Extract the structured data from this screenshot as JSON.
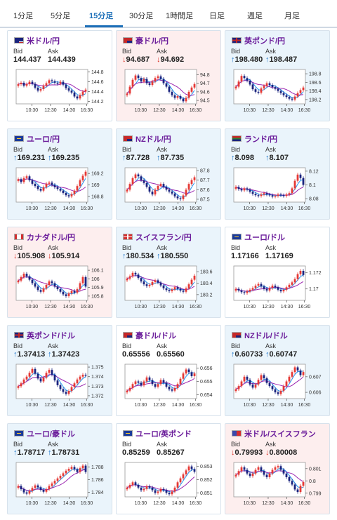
{
  "tabs": [
    {
      "label": "1分足",
      "active": false
    },
    {
      "label": "5分足",
      "active": false
    },
    {
      "label": "15分足",
      "active": true
    },
    {
      "label": "30分足",
      "active": false
    },
    {
      "label": "1時間足",
      "active": false
    },
    {
      "label": "日足",
      "active": false
    },
    {
      "label": "週足",
      "active": false
    },
    {
      "label": "月足",
      "active": false
    }
  ],
  "labels": {
    "bid": "Bid",
    "ask": "Ask"
  },
  "arrows": {
    "up": "↑",
    "down": "↓"
  },
  "colors": {
    "candle_up": "#e53935",
    "candle_down": "#1a237e",
    "ma_fast": "#9b27b0",
    "ma_slow": "#2196f3",
    "card_up_bg": "#eaf4fb",
    "card_down_bg": "#fdeeee",
    "pair_text": "#6a1b9a",
    "tab_active": "#1d6fb8"
  },
  "cards": [
    {
      "pair": "米ドル/円",
      "flag": "us-flag",
      "trend": "neutral",
      "bid": "144.437",
      "ask": "144.439",
      "chart_data": {
        "type": "candlestick",
        "x_ticks": [
          "10:30",
          "12:30",
          "14:30",
          "16:30"
        ],
        "y_ticks": [
          "144.8",
          "144.6",
          "144.4",
          "144.2"
        ],
        "ylim": [
          144.15,
          144.85
        ],
        "closes": [
          144.55,
          144.58,
          144.52,
          144.55,
          144.6,
          144.56,
          144.48,
          144.42,
          144.45,
          144.52,
          144.57,
          144.63,
          144.61,
          144.58,
          144.56,
          144.6,
          144.54,
          144.47,
          144.42,
          144.38,
          144.3,
          144.26,
          144.33,
          144.4,
          144.44
        ]
      }
    },
    {
      "pair": "豪ドル/円",
      "flag": "au-flag",
      "trend": "down",
      "bid": "94.687",
      "ask": "94.692",
      "chart_data": {
        "type": "candlestick",
        "x_ticks": [
          "10:30",
          "12:30",
          "14:30",
          "16:30"
        ],
        "y_ticks": [
          "94.8",
          "94.7",
          "94.6",
          "94.5"
        ],
        "ylim": [
          94.46,
          94.86
        ],
        "closes": [
          94.58,
          94.66,
          94.74,
          94.79,
          94.76,
          94.72,
          94.75,
          94.7,
          94.68,
          94.72,
          94.76,
          94.78,
          94.75,
          94.7,
          94.66,
          94.6,
          94.56,
          94.53,
          94.55,
          94.52,
          94.49,
          94.53,
          94.6,
          94.65,
          94.69
        ]
      }
    },
    {
      "pair": "英ポンド/円",
      "flag": "gb-flag",
      "trend": "up",
      "bid": "198.480",
      "ask": "198.487",
      "chart_data": {
        "type": "candlestick",
        "x_ticks": [
          "10:30",
          "12:30",
          "14:30",
          "16:30"
        ],
        "y_ticks": [
          "198.8",
          "198.6",
          "198.4",
          "198.2"
        ],
        "ylim": [
          198.1,
          198.9
        ],
        "closes": [
          198.5,
          198.62,
          198.75,
          198.7,
          198.64,
          198.55,
          198.44,
          198.38,
          198.36,
          198.46,
          198.52,
          198.58,
          198.54,
          198.49,
          198.45,
          198.4,
          198.35,
          198.3,
          198.26,
          198.22,
          198.2,
          198.27,
          198.35,
          198.42,
          198.48
        ]
      }
    },
    {
      "pair": "ユーロ/円",
      "flag": "eu-flag",
      "trend": "up",
      "bid": "169.231",
      "ask": "169.235",
      "chart_data": {
        "type": "candlestick",
        "x_ticks": [
          "10:30",
          "12:30",
          "14:30",
          "16:30"
        ],
        "y_ticks": [
          "169.2",
          "169",
          "168.8"
        ],
        "ylim": [
          168.7,
          169.3
        ],
        "closes": [
          169.1,
          169.05,
          169.12,
          169.15,
          169.08,
          169.02,
          168.98,
          168.93,
          168.9,
          168.96,
          169.02,
          169.04,
          169.0,
          168.96,
          168.93,
          168.9,
          168.86,
          168.82,
          168.8,
          168.84,
          168.9,
          168.98,
          169.08,
          169.16,
          169.23
        ]
      }
    },
    {
      "pair": "NZドル/円",
      "flag": "nz-flag",
      "trend": "up",
      "bid": "87.728",
      "ask": "87.735",
      "chart_data": {
        "type": "candlestick",
        "x_ticks": [
          "10:30",
          "12:30",
          "14:30",
          "16:30"
        ],
        "y_ticks": [
          "87.8",
          "87.7",
          "87.6",
          "87.5"
        ],
        "ylim": [
          87.47,
          87.83
        ],
        "closes": [
          87.6,
          87.66,
          87.72,
          87.76,
          87.74,
          87.7,
          87.67,
          87.63,
          87.58,
          87.55,
          87.6,
          87.64,
          87.66,
          87.63,
          87.6,
          87.58,
          87.56,
          87.53,
          87.51,
          87.5,
          87.54,
          87.6,
          87.66,
          87.7,
          87.73
        ]
      }
    },
    {
      "pair": "ランド/円",
      "flag": "za-flag",
      "trend": "up",
      "bid": "8.098",
      "ask": "8.107",
      "chart_data": {
        "type": "candlestick",
        "x_ticks": [
          "10:30",
          "12:30",
          "14:30",
          "16:30"
        ],
        "y_ticks": [
          "8.12",
          "8.1",
          "8.08"
        ],
        "ylim": [
          8.075,
          8.125
        ],
        "closes": [
          8.097,
          8.094,
          8.092,
          8.095,
          8.093,
          8.09,
          8.087,
          8.085,
          8.084,
          8.086,
          8.088,
          8.086,
          8.085,
          8.083,
          8.084,
          8.086,
          8.085,
          8.084,
          8.086,
          8.088,
          8.095,
          8.106,
          8.115,
          8.11,
          8.1
        ]
      }
    },
    {
      "pair": "カナダドル/円",
      "flag": "ca-flag",
      "trend": "down",
      "bid": "105.908",
      "ask": "105.914",
      "chart_data": {
        "type": "candlestick",
        "x_ticks": [
          "10:30",
          "12:30",
          "14:30",
          "16:30"
        ],
        "y_ticks": [
          "106.1",
          "106",
          "105.9",
          "105.8"
        ],
        "ylim": [
          105.75,
          106.15
        ],
        "closes": [
          105.98,
          106.02,
          106.06,
          106.03,
          105.99,
          105.95,
          105.91,
          105.87,
          105.85,
          105.89,
          105.93,
          105.97,
          105.95,
          105.91,
          105.88,
          105.85,
          105.82,
          105.8,
          105.83,
          105.86,
          105.84,
          105.88,
          105.95,
          106.02,
          105.91
        ]
      }
    },
    {
      "pair": "スイスフラン/円",
      "flag": "ch-flag",
      "trend": "up",
      "bid": "180.534",
      "ask": "180.550",
      "chart_data": {
        "type": "candlestick",
        "x_ticks": [
          "10:30",
          "12:30",
          "14:30",
          "16:30"
        ],
        "y_ticks": [
          "180.6",
          "180.4",
          "180.2"
        ],
        "ylim": [
          180.1,
          180.7
        ],
        "closes": [
          180.48,
          180.52,
          180.58,
          180.55,
          180.49,
          180.43,
          180.38,
          180.35,
          180.37,
          180.42,
          180.45,
          180.41,
          180.36,
          180.31,
          180.28,
          180.26,
          180.29,
          180.33,
          180.3,
          180.27,
          180.25,
          180.31,
          180.38,
          180.46,
          180.53
        ]
      }
    },
    {
      "pair": "ユーロ/ドル",
      "flag": "eu-flag",
      "trend": "neutral",
      "bid": "1.17166",
      "ask": "1.17169",
      "chart_data": {
        "type": "candlestick",
        "x_ticks": [
          "10:30",
          "12:30",
          "14:30",
          "16:30"
        ],
        "y_ticks": [
          "1.172",
          "1.17"
        ],
        "ylim": [
          1.1686,
          1.1728
        ],
        "closes": [
          1.17,
          1.1698,
          1.1696,
          1.1695,
          1.1697,
          1.1699,
          1.1701,
          1.1704,
          1.1706,
          1.1703,
          1.17,
          1.1698,
          1.1701,
          1.1704,
          1.1702,
          1.1699,
          1.1697,
          1.1699,
          1.1702,
          1.1705,
          1.1708,
          1.1712,
          1.1718,
          1.1722,
          1.1717
        ]
      }
    },
    {
      "pair": "英ポンド/ドル",
      "flag": "gb-flag",
      "trend": "up",
      "bid": "1.37413",
      "ask": "1.37423",
      "chart_data": {
        "type": "candlestick",
        "x_ticks": [
          "10:30",
          "12:30",
          "14:30",
          "16:30"
        ],
        "y_ticks": [
          "1.375",
          "1.374",
          "1.373",
          "1.372"
        ],
        "ylim": [
          1.3717,
          1.3753
        ],
        "closes": [
          1.373,
          1.3733,
          1.3737,
          1.374,
          1.3744,
          1.3748,
          1.3743,
          1.3738,
          1.3735,
          1.3739,
          1.3744,
          1.3747,
          1.3742,
          1.3736,
          1.3731,
          1.3727,
          1.3724,
          1.3722,
          1.3725,
          1.3729,
          1.3733,
          1.3737,
          1.374,
          1.3742,
          1.3741
        ]
      }
    },
    {
      "pair": "豪ドル/ドル",
      "flag": "au-flag",
      "trend": "neutral",
      "bid": "0.65556",
      "ask": "0.65560",
      "chart_data": {
        "type": "candlestick",
        "x_ticks": [
          "10:30",
          "12:30",
          "14:30",
          "16:30"
        ],
        "y_ticks": [
          "0.656",
          "0.655",
          "0.654"
        ],
        "ylim": [
          0.6537,
          0.6563
        ],
        "closes": [
          0.6543,
          0.6545,
          0.6548,
          0.655,
          0.6549,
          0.6547,
          0.655,
          0.6553,
          0.6551,
          0.6548,
          0.6546,
          0.6548,
          0.6551,
          0.6549,
          0.6546,
          0.6544,
          0.6543,
          0.6545,
          0.6548,
          0.6552,
          0.6556,
          0.6559,
          0.6557,
          0.6554,
          0.6556
        ]
      }
    },
    {
      "pair": "NZドル/ドル",
      "flag": "nz-flag",
      "trend": "up",
      "bid": "0.60733",
      "ask": "0.60747",
      "chart_data": {
        "type": "candlestick",
        "x_ticks": [
          "10:30",
          "12:30",
          "14:30",
          "16:30"
        ],
        "y_ticks": [
          "0.607",
          "0.606"
        ],
        "ylim": [
          0.6056,
          0.6078
        ],
        "closes": [
          0.6062,
          0.6064,
          0.6067,
          0.607,
          0.6068,
          0.6065,
          0.6063,
          0.6065,
          0.6068,
          0.6071,
          0.6069,
          0.6066,
          0.6064,
          0.6062,
          0.606,
          0.6059,
          0.6061,
          0.6064,
          0.6067,
          0.607,
          0.6073,
          0.6076,
          0.6074,
          0.6071,
          0.6073
        ]
      }
    },
    {
      "pair": "ユーロ/豪ドル",
      "flag": "eu-flag",
      "trend": "up",
      "bid": "1.78717",
      "ask": "1.78731",
      "chart_data": {
        "type": "candlestick",
        "x_ticks": [
          "10:30",
          "12:30",
          "14:30",
          "16:30"
        ],
        "y_ticks": [
          "1.788",
          "1.786",
          "1.784"
        ],
        "ylim": [
          1.7833,
          1.7887
        ],
        "closes": [
          1.785,
          1.7845,
          1.784,
          1.7838,
          1.7842,
          1.7847,
          1.7851,
          1.7848,
          1.7844,
          1.7841,
          1.7845,
          1.785,
          1.7854,
          1.7858,
          1.7862,
          1.7866,
          1.787,
          1.7874,
          1.7877,
          1.788,
          1.7876,
          1.7872,
          1.7878,
          1.7882,
          1.7872
        ]
      }
    },
    {
      "pair": "ユーロ/英ポンド",
      "flag": "eu-flag",
      "trend": "neutral",
      "bid": "0.85259",
      "ask": "0.85267",
      "chart_data": {
        "type": "candlestick",
        "x_ticks": [
          "10:30",
          "12:30",
          "14:30",
          "16:30"
        ],
        "y_ticks": [
          "0.853",
          "0.852",
          "0.851"
        ],
        "ylim": [
          0.8507,
          0.8533
        ],
        "closes": [
          0.8514,
          0.8516,
          0.8518,
          0.8516,
          0.8514,
          0.8512,
          0.8513,
          0.8515,
          0.8514,
          0.8512,
          0.851,
          0.8511,
          0.8513,
          0.8512,
          0.851,
          0.8509,
          0.8511,
          0.8514,
          0.8518,
          0.8521,
          0.8524,
          0.8527,
          0.853,
          0.8528,
          0.8526
        ]
      }
    },
    {
      "pair": "米ドル/スイスフラン",
      "flag": "us-ch-flag",
      "trend": "down",
      "bid": "0.79993",
      "ask": "0.80008",
      "chart_data": {
        "type": "candlestick",
        "x_ticks": [
          "10:30",
          "12:30",
          "14:30",
          "16:30"
        ],
        "y_ticks": [
          "0.801",
          "0.8",
          "0.799"
        ],
        "ylim": [
          0.7987,
          0.8015
        ],
        "closes": [
          0.8005,
          0.8008,
          0.8011,
          0.8009,
          0.8006,
          0.8004,
          0.8006,
          0.8009,
          0.8011,
          0.8008,
          0.8005,
          0.8003,
          0.8006,
          0.8009,
          0.8011,
          0.8012,
          0.8009,
          0.8006,
          0.8003,
          0.8,
          0.7997,
          0.7993,
          0.7991,
          0.7996,
          0.7999
        ]
      }
    }
  ]
}
